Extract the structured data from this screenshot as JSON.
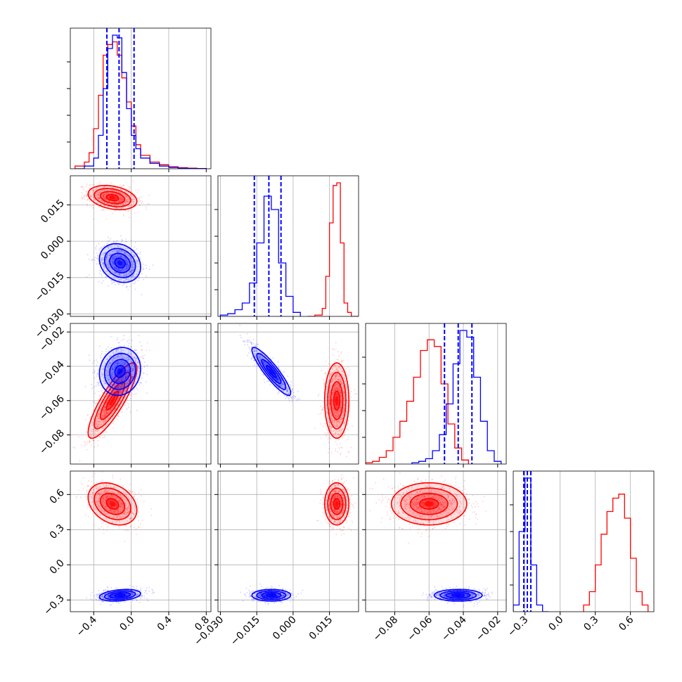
{
  "colors": {
    "red": "#ff0000",
    "blue": "#0000ff",
    "grid": "#b0b0b0",
    "axis": "#000000"
  },
  "chart_data": {
    "type": "corner",
    "parameters": [
      {
        "range": [
          -0.65,
          0.85
        ],
        "ticks": [
          -0.4,
          0.0,
          0.4,
          0.8
        ],
        "tick_labels": [
          "−0.4",
          "0.0",
          "0.4",
          "0.8"
        ]
      },
      {
        "range": [
          -0.031,
          0.027
        ],
        "ticks": [
          -0.03,
          -0.015,
          0.0,
          0.015
        ],
        "tick_labels": [
          "−0.030",
          "−0.015",
          "0.000",
          "0.015"
        ]
      },
      {
        "range": [
          -0.097,
          -0.015
        ],
        "ticks": [
          -0.08,
          -0.06,
          -0.04,
          -0.02
        ],
        "tick_labels": [
          "−0.08",
          "−0.06",
          "−0.04",
          "−0.02"
        ]
      },
      {
        "range": [
          -0.4,
          0.8
        ],
        "ticks": [
          -0.3,
          0.0,
          0.3,
          0.6
        ],
        "tick_labels": [
          "−0.3",
          "0.0",
          "0.3",
          "0.6"
        ]
      }
    ],
    "grid": true,
    "series": [
      {
        "color": "red",
        "mean": [
          -0.2,
          0.018,
          -0.06,
          0.52
        ],
        "std": [
          0.13,
          0.0025,
          0.011,
          0.09
        ],
        "corr": [
          [
            1,
            -0.3,
            0.85,
            -0.3
          ],
          [
            -0.3,
            1,
            0.0,
            0.0
          ],
          [
            0.85,
            0.0,
            1,
            0.0
          ],
          [
            -0.3,
            0.0,
            0.0,
            1
          ]
        ],
        "histograms": [
          {
            "edges": [
              -0.6,
              -0.5,
              -0.45,
              -0.4,
              -0.35,
              -0.3,
              -0.25,
              -0.2,
              -0.15,
              -0.1,
              -0.05,
              0.0,
              0.05,
              0.1,
              0.2,
              0.3,
              0.4,
              0.5,
              0.6,
              0.7,
              0.8
            ],
            "counts": [
              0.02,
              0.05,
              0.12,
              0.3,
              0.55,
              0.85,
              0.93,
              0.95,
              0.85,
              0.68,
              0.5,
              0.32,
              0.18,
              0.1,
              0.05,
              0.03,
              0.015,
              0.008,
              0.004,
              0.002
            ]
          },
          {
            "edges": [
              0.006,
              0.009,
              0.012,
              0.0135,
              0.015,
              0.0165,
              0.018,
              0.0195,
              0.021,
              0.0225,
              0.024,
              0.027
            ],
            "counts": [
              0.0,
              0.01,
              0.06,
              0.3,
              0.7,
              0.98,
              1.0,
              0.55,
              0.1,
              0.03,
              0.0
            ]
          },
          {
            "edges": [
              -0.097,
              -0.093,
              -0.089,
              -0.085,
              -0.081,
              -0.077,
              -0.073,
              -0.069,
              -0.065,
              -0.061,
              -0.057,
              -0.053,
              -0.049,
              -0.045,
              -0.041,
              -0.037
            ],
            "counts": [
              0.01,
              0.02,
              0.05,
              0.1,
              0.2,
              0.32,
              0.47,
              0.65,
              0.85,
              0.93,
              0.88,
              0.6,
              0.3,
              0.12,
              0.03
            ]
          },
          {
            "edges": [
              0.2,
              0.25,
              0.3,
              0.35,
              0.4,
              0.45,
              0.5,
              0.55,
              0.6,
              0.65,
              0.7,
              0.75
            ],
            "counts": [
              0.05,
              0.15,
              0.35,
              0.58,
              0.75,
              0.85,
              0.88,
              0.7,
              0.4,
              0.15,
              0.05
            ]
          }
        ]
      },
      {
        "color": "blue",
        "mean": [
          -0.12,
          -0.009,
          -0.043,
          -0.26
        ],
        "std": [
          0.11,
          0.004,
          0.007,
          0.025
        ],
        "corr": [
          [
            1,
            -0.2,
            0.1,
            0.3
          ],
          [
            -0.2,
            1,
            -0.9,
            0.0
          ],
          [
            0.1,
            -0.9,
            1,
            0.0
          ],
          [
            0.3,
            0.0,
            0.0,
            1
          ]
        ],
        "quantiles": [
          [
            -0.26,
            -0.13,
            0.03
          ],
          [
            -0.016,
            -0.01,
            -0.005
          ],
          [
            -0.051,
            -0.043,
            -0.035
          ],
          [
            -0.31,
            -0.28,
            -0.25
          ]
        ],
        "histograms": [
          {
            "edges": [
              -0.6,
              -0.5,
              -0.4,
              -0.35,
              -0.3,
              -0.25,
              -0.2,
              -0.15,
              -0.1,
              -0.05,
              0.0,
              0.05,
              0.1,
              0.2,
              0.3,
              0.4,
              0.5,
              0.6,
              0.7,
              0.8
            ],
            "counts": [
              0.0,
              0.02,
              0.08,
              0.25,
              0.6,
              0.9,
              1.0,
              0.98,
              0.72,
              0.45,
              0.25,
              0.15,
              0.08,
              0.04,
              0.02,
              0.01,
              0.005,
              0.002,
              0.001
            ]
          },
          {
            "edges": [
              -0.03,
              -0.027,
              -0.024,
              -0.021,
              -0.018,
              -0.015,
              -0.012,
              -0.009,
              -0.006,
              -0.003,
              0.0,
              0.003
            ],
            "counts": [
              0.01,
              0.02,
              0.05,
              0.1,
              0.25,
              0.55,
              0.9,
              0.8,
              0.4,
              0.15,
              0.03
            ]
          },
          {
            "edges": [
              -0.07,
              -0.066,
              -0.062,
              -0.058,
              -0.054,
              -0.05,
              -0.046,
              -0.042,
              -0.038,
              -0.034,
              -0.03,
              -0.026,
              -0.022,
              -0.018
            ],
            "counts": [
              0.01,
              0.02,
              0.04,
              0.1,
              0.22,
              0.45,
              0.75,
              1.0,
              0.95,
              0.65,
              0.32,
              0.1,
              0.02
            ]
          },
          {
            "edges": [
              -0.4,
              -0.35,
              -0.3,
              -0.25,
              -0.2,
              -0.15,
              -0.1
            ],
            "counts": [
              0.05,
              0.6,
              1.0,
              0.35,
              0.05,
              0.0
            ]
          }
        ]
      }
    ]
  }
}
